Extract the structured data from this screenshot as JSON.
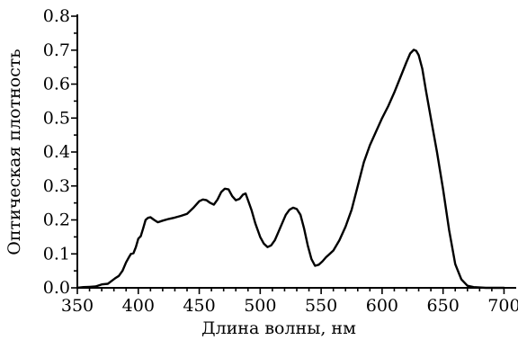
{
  "chart_data": {
    "type": "line",
    "title": "",
    "xlabel": "Длина волны, нм",
    "ylabel": "Оптическая плотность",
    "xlim": [
      350,
      710
    ],
    "ylim": [
      0,
      0.8
    ],
    "x_ticks": [
      350,
      400,
      450,
      500,
      550,
      600,
      650,
      700
    ],
    "x_tick_labels": [
      "350",
      "400",
      "450",
      "500",
      "550",
      "600",
      "650",
      "700"
    ],
    "y_ticks": [
      0,
      0.1,
      0.2,
      0.3,
      0.4,
      0.5,
      0.6,
      0.7,
      0.8
    ],
    "y_tick_labels": [
      "0.0",
      "0.1",
      "0.2",
      "0.3",
      "0.4",
      "0.5",
      "0.6",
      "0.7",
      "0.8"
    ],
    "grid": false,
    "legend": "none",
    "series": [
      {
        "x": [
          350,
          355,
          360,
          365,
          370,
          375,
          378,
          381,
          384,
          387,
          390,
          392,
          394,
          396,
          398,
          400,
          402,
          404,
          406,
          408,
          410,
          413,
          416,
          420,
          425,
          430,
          435,
          440,
          445,
          450,
          453,
          456,
          459,
          462,
          465,
          468,
          471,
          474,
          477,
          480,
          483,
          486,
          488,
          490,
          493,
          496,
          500,
          503,
          506,
          509,
          512,
          515,
          518,
          521,
          524,
          527,
          530,
          533,
          536,
          539,
          542,
          545,
          548,
          551,
          554,
          557,
          560,
          565,
          570,
          575,
          580,
          585,
          590,
          595,
          600,
          605,
          610,
          615,
          620,
          623,
          626,
          628,
          630,
          633,
          636,
          640,
          645,
          650,
          655,
          660,
          665,
          670,
          675,
          680,
          685,
          690,
          695,
          700
        ],
        "y": [
          0.0,
          0.002,
          0.003,
          0.004,
          0.01,
          0.012,
          0.02,
          0.028,
          0.035,
          0.05,
          0.075,
          0.088,
          0.1,
          0.102,
          0.12,
          0.145,
          0.152,
          0.175,
          0.2,
          0.206,
          0.208,
          0.2,
          0.193,
          0.198,
          0.203,
          0.207,
          0.212,
          0.218,
          0.235,
          0.255,
          0.26,
          0.258,
          0.25,
          0.245,
          0.26,
          0.282,
          0.292,
          0.29,
          0.27,
          0.258,
          0.262,
          0.275,
          0.278,
          0.258,
          0.228,
          0.19,
          0.15,
          0.13,
          0.12,
          0.125,
          0.14,
          0.165,
          0.19,
          0.215,
          0.23,
          0.236,
          0.232,
          0.215,
          0.175,
          0.125,
          0.085,
          0.065,
          0.068,
          0.078,
          0.09,
          0.1,
          0.11,
          0.14,
          0.18,
          0.23,
          0.3,
          0.37,
          0.42,
          0.46,
          0.5,
          0.535,
          0.575,
          0.62,
          0.665,
          0.69,
          0.701,
          0.698,
          0.685,
          0.645,
          0.58,
          0.5,
          0.4,
          0.29,
          0.17,
          0.07,
          0.025,
          0.006,
          0.002,
          0.001,
          0.0,
          0.0,
          0.0,
          0.0
        ]
      }
    ]
  }
}
